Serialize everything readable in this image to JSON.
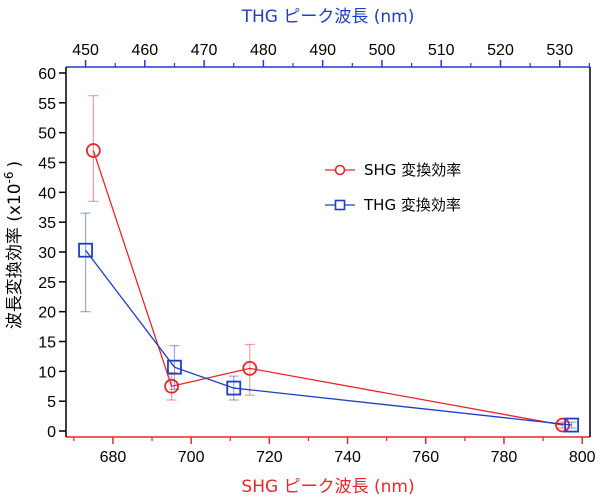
{
  "chart_data": {
    "type": "scatter",
    "x_bottom_label": "SHG ピーク波長 (nm)",
    "x_top_label": "THG ピーク波長 (nm)",
    "y_label_main": "波長変換効率 (x10",
    "y_label_exp": "-6",
    "y_label_close": ")",
    "x_bottom_range": [
      668,
      802
    ],
    "x_top_range": [
      446.7,
      535.1
    ],
    "y_range": [
      -1,
      61
    ],
    "x_bottom_ticks": [
      680,
      700,
      720,
      740,
      760,
      780,
      800
    ],
    "x_top_ticks": [
      450,
      460,
      470,
      480,
      490,
      500,
      510,
      520,
      530
    ],
    "y_ticks": [
      0,
      5,
      10,
      15,
      20,
      25,
      30,
      35,
      40,
      45,
      50,
      55,
      60
    ],
    "bottom_axis_color": "#e8262d",
    "top_axis_color": "#1f3ec4",
    "series": [
      {
        "name": "SHG 変換効率",
        "color": "#e8262d",
        "marker": "circle",
        "axis": "bottom",
        "x": [
          675,
          695,
          715,
          795
        ],
        "y": [
          47,
          7.5,
          10.5,
          1
        ],
        "err_low": [
          38.5,
          5.2,
          6,
          0.5
        ],
        "err_high": [
          56.2,
          9.8,
          14.5,
          1.5
        ]
      },
      {
        "name": "THG 変換効率",
        "color": "#1f3ec4",
        "marker": "square",
        "axis": "top",
        "x": [
          450,
          465,
          475,
          532
        ],
        "y": [
          30.3,
          10.7,
          7.2,
          1
        ],
        "err_low": [
          20,
          7,
          5.2,
          0.5
        ],
        "err_high": [
          36.5,
          14.3,
          9.2,
          1.5
        ]
      }
    ],
    "legend_position": "right-center"
  }
}
